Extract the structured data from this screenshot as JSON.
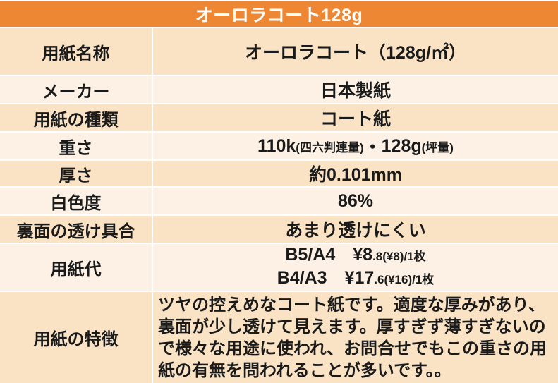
{
  "table": {
    "title": "オーロラコート128g",
    "colors": {
      "header_bg": "#ED8733",
      "header_text": "#FFFFFF",
      "row_band_dark": "#FAE3C5",
      "row_band_light": "#FCF1E4",
      "body_text": "#1A1A1A",
      "separator": "#FFFFFF"
    },
    "rows": [
      {
        "label": "用紙名称",
        "value": "オーロラコート（128g/㎡）"
      },
      {
        "label": "メーカー",
        "value": "日本製紙"
      },
      {
        "label": "用紙の種類",
        "value": "コート紙"
      },
      {
        "label": "重さ",
        "parts": {
          "big1": "110k",
          "small1": "(四六判連量)",
          "sep": "・",
          "big2": "128g",
          "small2": "(坪量)"
        }
      },
      {
        "label": "厚さ",
        "value": "約0.101mm"
      },
      {
        "label": "白色度",
        "value": "86%"
      },
      {
        "label": "裏面の透け具合",
        "value": "あまり透けにくい"
      },
      {
        "label": "用紙代",
        "lines": [
          {
            "big": "B5/A4　¥8",
            "small": ".8(¥8)/1枚"
          },
          {
            "big": "B4/A3　¥17",
            "small": ".6(¥16)/1枚"
          }
        ]
      },
      {
        "label": "用紙の特徴",
        "value": "ツヤの控えめなコート紙です。適度な厚みがあり、裏面が少し透けて見えます。厚すぎず薄すぎないので様々な用途に使われ、お問合せでもこの重さの用紙の有無を問われることが多いです。。"
      }
    ]
  }
}
